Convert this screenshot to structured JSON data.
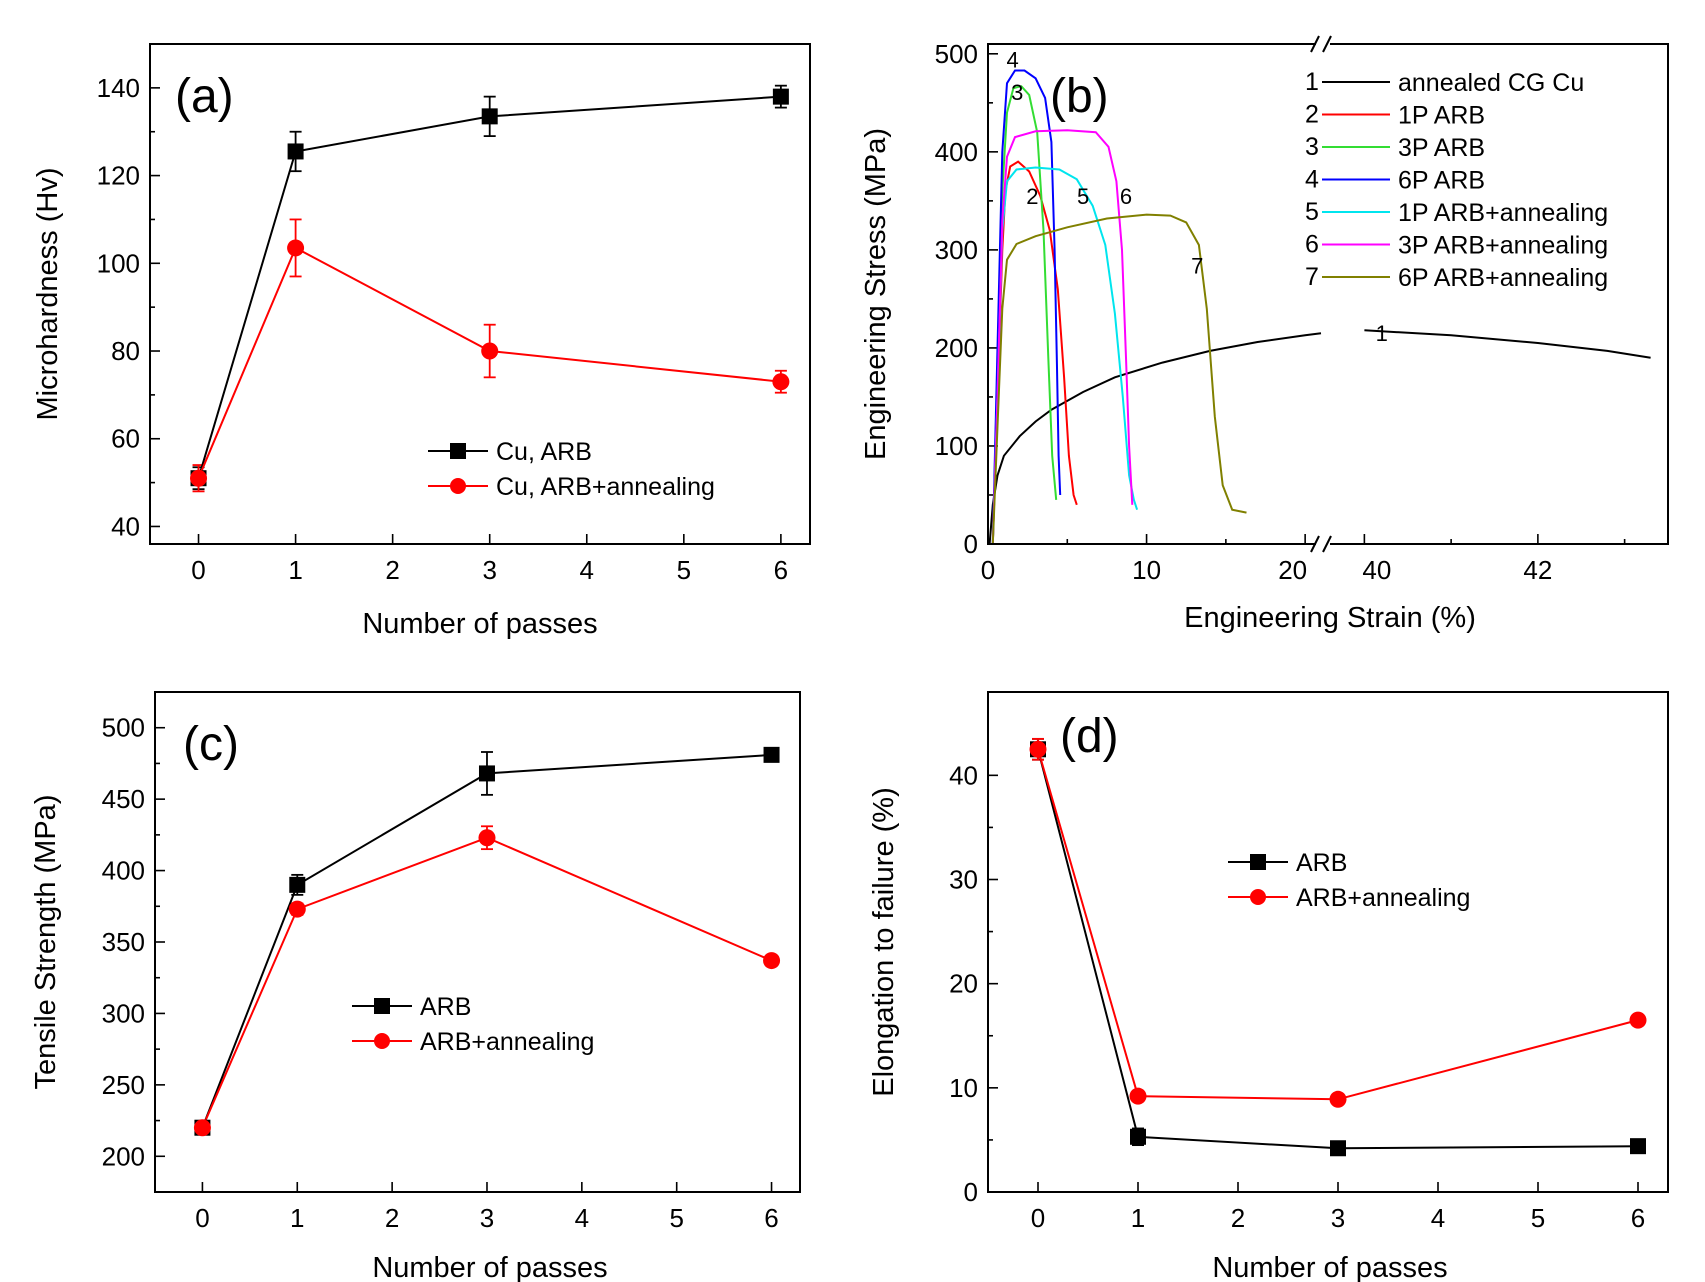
{
  "chart_data": [
    {
      "id": "a",
      "type": "line",
      "panel_label": "(a)",
      "xlabel": "Number of passes",
      "ylabel": "Microhardness (Hv)",
      "xlim": [
        -0.5,
        6.3
      ],
      "ylim": [
        36,
        150
      ],
      "xticks": [
        0,
        1,
        2,
        3,
        4,
        5,
        6
      ],
      "yticks": [
        40,
        60,
        80,
        100,
        120,
        140
      ],
      "legend_position": "lower-right",
      "series": [
        {
          "name": "Cu, ARB",
          "color": "#000000",
          "marker": "square",
          "x": [
            0,
            1,
            3,
            6
          ],
          "y": [
            51,
            125.5,
            133.5,
            138
          ],
          "err": [
            2.5,
            4.5,
            4.5,
            2.5
          ]
        },
        {
          "name": "Cu, ARB+annealing",
          "color": "#ff0000",
          "marker": "circle",
          "x": [
            0,
            1,
            3,
            6
          ],
          "y": [
            51,
            103.5,
            80,
            73
          ],
          "err": [
            3,
            6.5,
            6,
            2.5
          ]
        }
      ]
    },
    {
      "id": "b",
      "type": "line",
      "panel_label": "(b)",
      "xlabel": "Engineering Strain (%)",
      "ylabel": "Engineering Stress (MPa)",
      "xlim": [
        0,
        43.5
      ],
      "ylim": [
        0,
        510
      ],
      "axis_break": [
        21,
        39.5
      ],
      "xticks": [
        0,
        10,
        20,
        40,
        42
      ],
      "xtick_labels": [
        "0",
        "10",
        "20",
        "40",
        "42"
      ],
      "yticks": [
        0,
        100,
        200,
        300,
        400,
        500
      ],
      "legend_position": "top-right",
      "series": [
        {
          "id": "1",
          "name": "annealed CG Cu",
          "color": "#000000",
          "label_at": [
            40.2,
            215
          ],
          "points": [
            [
              0.1,
              0
            ],
            [
              0.3,
              40
            ],
            [
              0.6,
              70
            ],
            [
              1.0,
              90
            ],
            [
              2,
              110
            ],
            [
              3,
              125
            ],
            [
              4,
              137
            ],
            [
              6,
              155
            ],
            [
              8,
              170
            ],
            [
              11,
              185
            ],
            [
              14,
              197
            ],
            [
              17,
              206
            ],
            [
              20,
              213
            ],
            [
              21,
              215
            ],
            [
              40,
              218
            ],
            [
              41,
              213
            ],
            [
              42,
              205
            ],
            [
              42.8,
              197
            ],
            [
              43.3,
              190
            ]
          ]
        },
        {
          "id": "2",
          "name": "1P ARB",
          "color": "#ff0000",
          "label_at": [
            2.8,
            355
          ],
          "points": [
            [
              0.3,
              0
            ],
            [
              0.6,
              150
            ],
            [
              0.9,
              300
            ],
            [
              1.1,
              360
            ],
            [
              1.4,
              385
            ],
            [
              1.9,
              390
            ],
            [
              2.6,
              380
            ],
            [
              3.3,
              355
            ],
            [
              3.9,
              320
            ],
            [
              4.4,
              260
            ],
            [
              4.8,
              170
            ],
            [
              5.1,
              90
            ],
            [
              5.4,
              50
            ],
            [
              5.6,
              40
            ]
          ]
        },
        {
          "id": "3",
          "name": "3P ARB",
          "color": "#33dd33",
          "label_at": [
            1.85,
            461
          ],
          "points": [
            [
              0.3,
              0
            ],
            [
              0.6,
              180
            ],
            [
              0.9,
              360
            ],
            [
              1.2,
              440
            ],
            [
              1.6,
              465
            ],
            [
              2.1,
              467
            ],
            [
              2.6,
              458
            ],
            [
              3.1,
              420
            ],
            [
              3.5,
              320
            ],
            [
              3.8,
              190
            ],
            [
              4.05,
              90
            ],
            [
              4.3,
              45
            ]
          ]
        },
        {
          "id": "4",
          "name": "6P ARB",
          "color": "#0000ff",
          "label_at": [
            1.55,
            494
          ],
          "points": [
            [
              0.3,
              0
            ],
            [
              0.6,
              200
            ],
            [
              0.9,
              400
            ],
            [
              1.2,
              470
            ],
            [
              1.7,
              483
            ],
            [
              2.3,
              483
            ],
            [
              3.0,
              475
            ],
            [
              3.6,
              455
            ],
            [
              4.0,
              410
            ],
            [
              4.2,
              300
            ],
            [
              4.35,
              180
            ],
            [
              4.45,
              90
            ],
            [
              4.55,
              50
            ]
          ]
        },
        {
          "id": "5",
          "name": "1P ARB+annealing",
          "color": "#00e5ee",
          "label_at": [
            6.0,
            355
          ],
          "points": [
            [
              0.3,
              0
            ],
            [
              0.6,
              150
            ],
            [
              0.9,
              320
            ],
            [
              1.2,
              370
            ],
            [
              1.8,
              382
            ],
            [
              3.0,
              384
            ],
            [
              4.5,
              382
            ],
            [
              5.6,
              372
            ],
            [
              6.6,
              345
            ],
            [
              7.4,
              305
            ],
            [
              8.0,
              235
            ],
            [
              8.5,
              150
            ],
            [
              8.9,
              70
            ],
            [
              9.2,
              45
            ],
            [
              9.4,
              35
            ]
          ]
        },
        {
          "id": "6",
          "name": "3P ARB+annealing",
          "color": "#ff00ff",
          "label_at": [
            8.7,
            355
          ],
          "points": [
            [
              0.3,
              0
            ],
            [
              0.6,
              150
            ],
            [
              0.9,
              330
            ],
            [
              1.2,
              395
            ],
            [
              1.7,
              415
            ],
            [
              3.0,
              421
            ],
            [
              5.0,
              422
            ],
            [
              6.8,
              420
            ],
            [
              7.6,
              405
            ],
            [
              8.1,
              370
            ],
            [
              8.45,
              300
            ],
            [
              8.7,
              190
            ],
            [
              8.9,
              100
            ],
            [
              9.1,
              40
            ]
          ]
        },
        {
          "id": "7",
          "name": "6P ARB+annealing",
          "color": "#808000",
          "label_at": [
            13.2,
            284
          ],
          "points": [
            [
              0.3,
              0
            ],
            [
              0.6,
              120
            ],
            [
              0.9,
              240
            ],
            [
              1.2,
              290
            ],
            [
              1.8,
              306
            ],
            [
              3.0,
              314
            ],
            [
              5.0,
              323
            ],
            [
              7.5,
              332
            ],
            [
              10,
              336
            ],
            [
              11.5,
              335
            ],
            [
              12.5,
              328
            ],
            [
              13.3,
              305
            ],
            [
              13.8,
              240
            ],
            [
              14.3,
              130
            ],
            [
              14.8,
              60
            ],
            [
              15.4,
              35
            ],
            [
              16.3,
              32
            ]
          ]
        }
      ]
    },
    {
      "id": "c",
      "type": "line",
      "panel_label": "(c)",
      "xlabel": "Number of passes",
      "ylabel": "Tensile Strength (MPa)",
      "xlim": [
        -0.5,
        6.3
      ],
      "ylim": [
        175,
        525
      ],
      "xticks": [
        0,
        1,
        2,
        3,
        4,
        5,
        6
      ],
      "yticks": [
        200,
        250,
        300,
        350,
        400,
        450,
        500
      ],
      "legend_position": "center",
      "series": [
        {
          "name": "ARB",
          "color": "#000000",
          "marker": "square",
          "x": [
            0,
            1,
            3,
            6
          ],
          "y": [
            220,
            390,
            468,
            481
          ],
          "err": [
            3,
            7,
            15,
            3
          ]
        },
        {
          "name": "ARB+annealing",
          "color": "#ff0000",
          "marker": "circle",
          "x": [
            0,
            1,
            3,
            6
          ],
          "y": [
            220,
            373,
            423,
            337
          ],
          "err": [
            3,
            4,
            8,
            3
          ]
        }
      ]
    },
    {
      "id": "d",
      "type": "line",
      "panel_label": "(d)",
      "xlabel": "Number of passes",
      "ylabel": "Elongation to failure (%)",
      "xlim": [
        -0.5,
        6.3
      ],
      "ylim": [
        0,
        48
      ],
      "xticks": [
        0,
        1,
        2,
        3,
        4,
        5,
        6
      ],
      "yticks": [
        0,
        10,
        20,
        30,
        40
      ],
      "legend_position": "center-left",
      "series": [
        {
          "name": "ARB",
          "color": "#000000",
          "marker": "square",
          "x": [
            0,
            1,
            3,
            6
          ],
          "y": [
            42.5,
            5.3,
            4.2,
            4.4
          ],
          "err": [
            1,
            0.8,
            0.4,
            0.6
          ]
        },
        {
          "name": "ARB+annealing",
          "color": "#ff0000",
          "marker": "circle",
          "x": [
            0,
            1,
            3,
            6
          ],
          "y": [
            42.5,
            9.2,
            8.9,
            16.5
          ],
          "err": [
            1,
            0.4,
            0.4,
            0.4
          ]
        }
      ]
    }
  ]
}
